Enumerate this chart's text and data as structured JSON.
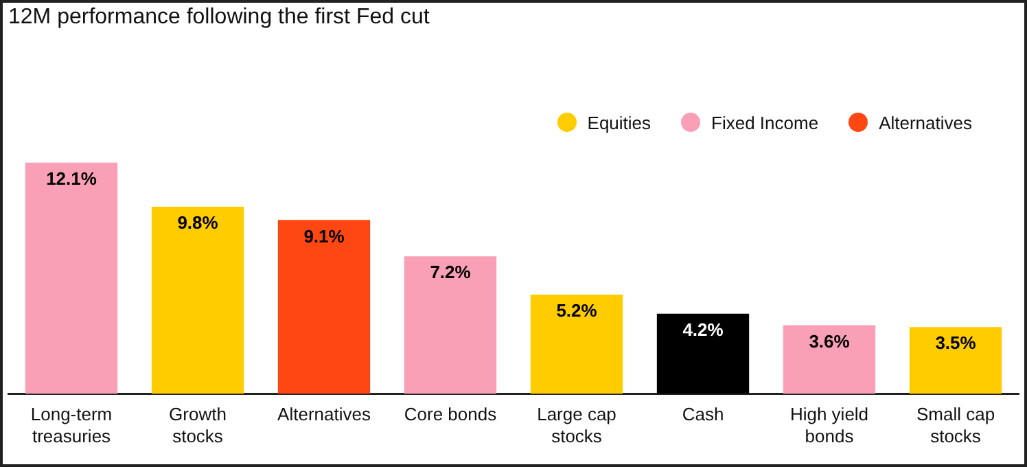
{
  "chart_data": {
    "type": "bar",
    "title": "12M performance following the first Fed cut",
    "categories": [
      "Long-term treasuries",
      "Growth stocks",
      "Alternatives",
      "Core bonds",
      "Large cap stocks",
      "Cash",
      "High yield bonds",
      "Small cap stocks"
    ],
    "stacked": true,
    "grid": false,
    "tick_labels": "x",
    "legend": "top right",
    "series": [
      {
        "name": "Equities",
        "color": "#ffcc00",
        "values": [
          null,
          9.8,
          null,
          null,
          5.2,
          null,
          null,
          3.5
        ],
        "value_labels": [
          null,
          "9.8%",
          null,
          null,
          "5.2%",
          null,
          null,
          "3.5%"
        ]
      },
      {
        "name": "Fixed Income",
        "color": "#f9a0b6",
        "values": [
          12.1,
          null,
          null,
          7.2,
          null,
          null,
          3.6,
          null
        ],
        "value_labels": [
          "12.1%",
          null,
          null,
          "7.2%",
          null,
          null,
          "3.6%",
          null
        ]
      },
      {
        "name": "Alternatives",
        "color": "#ff4713",
        "values": [
          null,
          null,
          9.1,
          null,
          null,
          null,
          null,
          null
        ],
        "value_labels": [
          null,
          null,
          "9.1%",
          null,
          null,
          null,
          null,
          null
        ]
      },
      {
        "color": "#000000",
        "values": [
          null,
          null,
          null,
          null,
          null,
          4.2,
          null,
          null
        ],
        "value_labels": [
          null,
          null,
          null,
          null,
          null,
          "4.2%",
          null,
          null
        ]
      }
    ]
  }
}
